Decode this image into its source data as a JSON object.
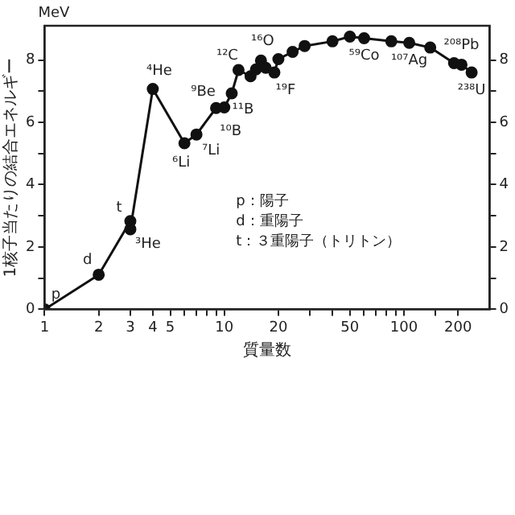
{
  "chart_data": {
    "type": "line",
    "xlabel": "質量数",
    "ylabel": "1核子当たりの結合エネルギー",
    "x": [
      1,
      2,
      3,
      3,
      4,
      6,
      7,
      9,
      10,
      11,
      12,
      14,
      15,
      16,
      17,
      19,
      20,
      24,
      28,
      40,
      50,
      60,
      85,
      107,
      140,
      190,
      209,
      238
    ],
    "series": [
      {
        "color": "#111111",
        "values": [
          0,
          1.11,
          2.83,
          2.57,
          7.07,
          5.33,
          5.61,
          6.46,
          6.48,
          6.93,
          7.68,
          7.48,
          7.7,
          7.98,
          7.75,
          7.6,
          8.03,
          8.26,
          8.45,
          8.6,
          8.75,
          8.7,
          8.6,
          8.55,
          8.4,
          7.9,
          7.85,
          7.6
        ]
      }
    ],
    "xlim": [
      1,
      300
    ],
    "log": "x",
    "xticks": [
      1,
      2,
      3,
      4,
      5,
      {
        "value": 6,
        "label": null
      },
      {
        "value": 7,
        "label": null
      },
      {
        "value": 8,
        "label": null
      },
      {
        "value": 9,
        "label": null
      },
      10,
      20,
      {
        "value": 30,
        "label": null
      },
      {
        "value": 40,
        "label": null
      },
      50,
      {
        "value": 60,
        "label": null
      },
      {
        "value": 70,
        "label": null
      },
      {
        "value": 80,
        "label": null
      },
      {
        "value": 90,
        "label": null
      },
      100,
      {
        "value": 150,
        "label": null
      },
      200
    ],
    "ylim": [
      0,
      9.1
    ],
    "yticks": [
      0,
      {
        "value": 1,
        "label": null
      },
      2,
      {
        "value": 3,
        "label": null
      },
      4,
      {
        "value": 5,
        "label": null
      },
      6,
      {
        "value": 7,
        "label": null
      },
      8
    ],
    "y2lim": [
      0,
      9.1
    ],
    "y2ticks": [
      0,
      {
        "value": 1,
        "label": null
      },
      2,
      {
        "value": 3,
        "label": null
      },
      4,
      {
        "value": 5,
        "label": null
      },
      6,
      {
        "value": 7,
        "label": null
      },
      8
    ],
    "marker": "circle",
    "line_style": "solid",
    "grid": false,
    "legend": false,
    "annotations": [
      "MeV",
      "p：陽子",
      "d：重陽子",
      "t：３重陽子（トリトン）",
      {
        "text": "p",
        "x": 1,
        "y": 0
      },
      {
        "text": "d",
        "x": 2,
        "y": 1.11
      },
      {
        "text": "t",
        "x": 3,
        "y": 2.83
      },
      {
        "text": "³He",
        "x": 3,
        "y": 2.57
      },
      {
        "text": "⁴He",
        "x": 4,
        "y": 7.07
      },
      {
        "text": "⁶Li",
        "x": 6,
        "y": 5.33
      },
      {
        "text": "⁷Li",
        "x": 7,
        "y": 5.61
      },
      {
        "text": "⁹Be",
        "x": 9,
        "y": 6.46
      },
      {
        "text": "¹⁰B",
        "x": 10,
        "y": 6.48
      },
      {
        "text": "¹¹B",
        "x": 11,
        "y": 6.93
      },
      {
        "text": "¹²C",
        "x": 12,
        "y": 7.68
      },
      {
        "text": "¹⁶O",
        "x": 16,
        "y": 7.98
      },
      {
        "text": "¹⁹F",
        "x": 19,
        "y": 7.6
      },
      {
        "text": "⁵⁹Co",
        "x": 60,
        "y": 8.7
      },
      {
        "text": "¹⁰⁷Ag",
        "x": 107,
        "y": 8.55
      },
      {
        "text": "²⁰⁸Pb",
        "x": 209,
        "y": 7.85
      },
      {
        "text": "²³⁸U",
        "x": 238,
        "y": 7.6
      }
    ]
  }
}
